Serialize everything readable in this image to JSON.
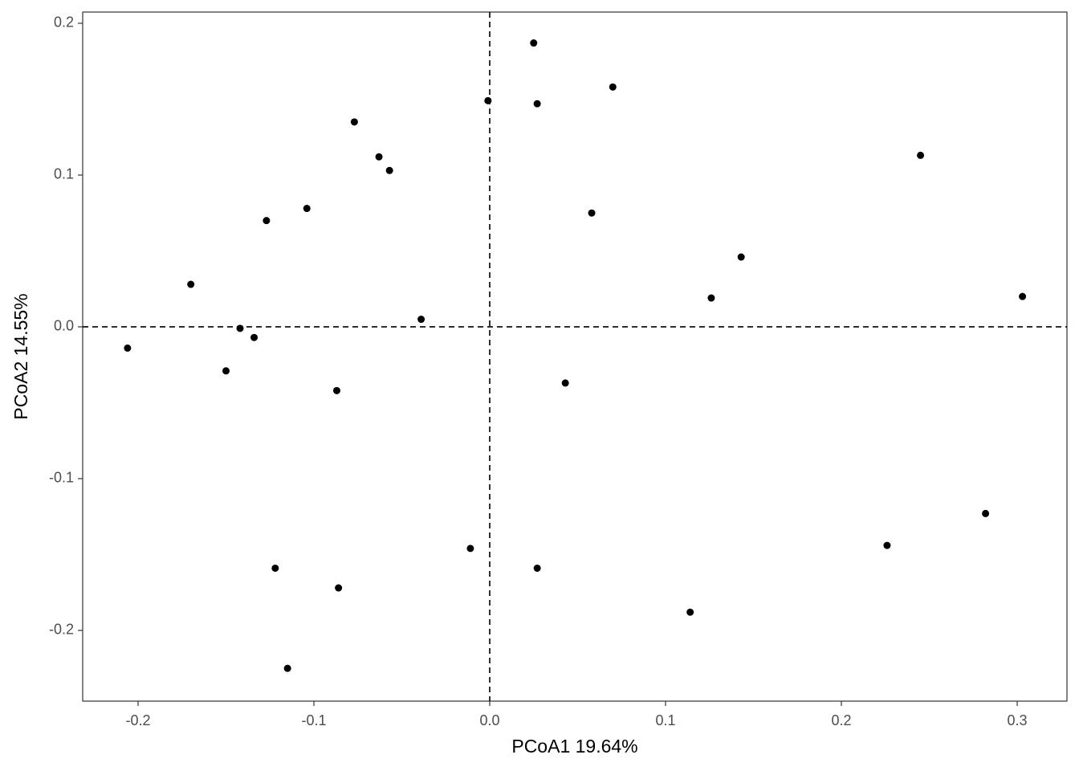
{
  "chart_data": {
    "type": "scatter",
    "xlabel": "PCoA1 19.64%",
    "ylabel": "PCoA2 14.55%",
    "color": "#000000",
    "x": [
      0.025,
      0.07,
      -0.001,
      0.027,
      -0.077,
      -0.063,
      -0.057,
      0.245,
      -0.104,
      -0.127,
      0.058,
      0.143,
      -0.17,
      0.126,
      0.303,
      -0.039,
      -0.142,
      -0.134,
      -0.206,
      -0.15,
      -0.087,
      0.043,
      0.282,
      0.226,
      -0.011,
      -0.122,
      0.027,
      -0.086,
      0.114,
      -0.115
    ],
    "values": [
      0.187,
      0.158,
      0.149,
      0.147,
      0.135,
      0.112,
      0.103,
      0.113,
      0.078,
      0.07,
      0.075,
      0.046,
      0.028,
      0.019,
      0.02,
      0.005,
      -0.001,
      -0.007,
      -0.014,
      -0.029,
      -0.042,
      -0.037,
      -0.123,
      -0.144,
      -0.146,
      -0.159,
      -0.159,
      -0.172,
      -0.188,
      -0.225
    ],
    "xlim": [
      -0.2315,
      0.3283
    ],
    "ylim": [
      -0.2466,
      0.2074
    ],
    "xticks": [
      -0.2,
      -0.1,
      {
        "value": 0,
        "label": "0.0"
      },
      0.1,
      0.2,
      0.3
    ],
    "yticks": [
      -0.2,
      -0.1,
      {
        "value": 0,
        "label": "0.0"
      },
      0.1,
      0.2
    ],
    "hline": 0,
    "vline": 0,
    "grid": false
  }
}
